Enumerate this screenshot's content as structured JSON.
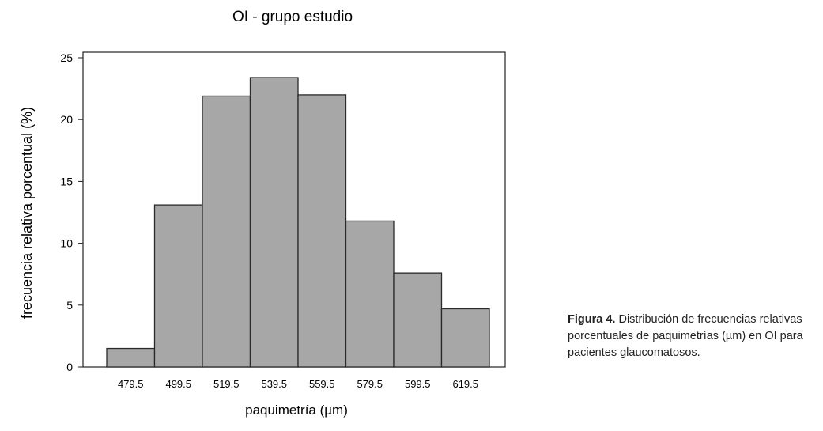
{
  "chart_data": {
    "type": "bar",
    "title": "OI - grupo estudio",
    "xlabel": "paquimetría (µm)",
    "ylabel": "frecuencia relativa porcentual (%)",
    "categories": [
      "479.5",
      "499.5",
      "519.5",
      "539.5",
      "559.5",
      "579.5",
      "599.5",
      "619.5"
    ],
    "values": [
      1.5,
      13.1,
      21.9,
      23.4,
      22.0,
      11.8,
      7.6,
      4.7
    ],
    "ylim": [
      0,
      25
    ],
    "yticks": [
      "0",
      "5",
      "10",
      "15",
      "20",
      "25"
    ],
    "grid": false,
    "legend": "none",
    "bar_color": "#a7a7a7",
    "bar_edge_color": "#2a2a2a"
  },
  "caption": {
    "lead": "Figura 4.",
    "text": "Distribución de frecuencias relativas porcentuales de paquimetrías (µm) en OI para pacientes glaucomatosos."
  }
}
